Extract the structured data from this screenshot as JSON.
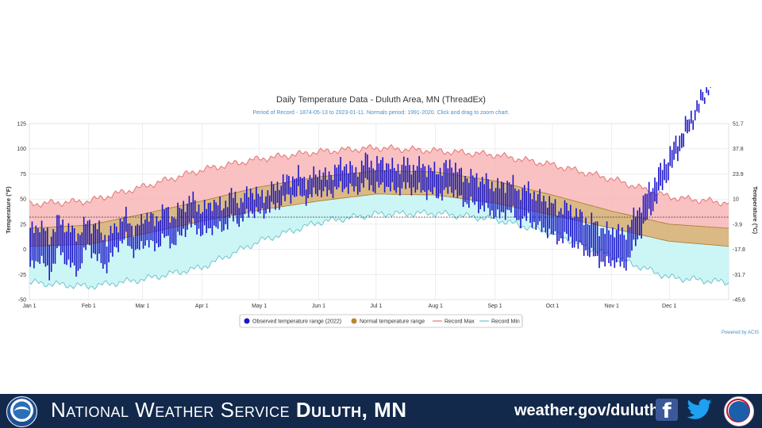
{
  "footer": {
    "org_prefix": "National Weather Service",
    "org_office": "Duluth, MN",
    "website": "weather.gov/duluth",
    "noaa_logo_icon": "noaa-logo-icon",
    "nws_logo_icon": "nws-logo-icon",
    "background_color": "#13294b"
  },
  "chart_data": {
    "type": "area",
    "title": "Daily Temperature Data - Duluth Area, MN (ThreadEx)",
    "subtitle": "Period of Record - 1874-05-13 to 2023-01-11. Normals period: 1991-2020. Click and drag to zoom chart.",
    "ylabel": "Temperature (°F)",
    "y2label": "Temperature (°C)",
    "ylim": [
      -50,
      125
    ],
    "yticks": [
      125,
      100,
      75,
      50,
      25,
      0,
      -25,
      -50
    ],
    "y2ticks": [
      "51.7",
      "37.8",
      "23.9",
      "10",
      "-3.9",
      "-17.8",
      "-31.7",
      "-45.6"
    ],
    "months": [
      "Jan 1",
      "Feb 1",
      "Mar 1",
      "Apr 1",
      "May 1",
      "Jun 1",
      "Jul 1",
      "Aug 1",
      "Sep 1",
      "Oct 1",
      "Nov 1",
      "Dec 1"
    ],
    "grid": true,
    "freezing_line_f": 32,
    "legend_position": "bottom",
    "legend": [
      "Observed temperature range (2022)",
      "Normal temperature range",
      "Record Max",
      "Record Min"
    ],
    "credit": "Powered by ACIS",
    "colors": {
      "observed": "#1c16c9",
      "normal_band": "#d8b57e",
      "normal_marker": "#b8862d",
      "record_max_fill": "#f8b6b6",
      "record_max_line": "#e57575",
      "record_min_fill": "#c7f4f4",
      "record_min_line": "#6fc5cf"
    },
    "seasonal_curves_by_month": {
      "record_max": [
        45,
        48,
        62,
        79,
        90,
        97,
        101,
        98,
        94,
        84,
        70,
        52,
        46
      ],
      "record_min": [
        -33,
        -37,
        -30,
        -18,
        8,
        27,
        35,
        36,
        30,
        16,
        -7,
        -28,
        -33
      ],
      "normal_high": [
        21,
        24,
        35,
        48,
        62,
        72,
        78,
        77,
        68,
        54,
        38,
        25,
        21
      ],
      "normal_low": [
        3,
        5,
        15,
        28,
        39,
        48,
        55,
        54,
        46,
        34,
        21,
        8,
        3
      ]
    },
    "observed_2022_sample": {
      "step_days": 5,
      "start": "Jan 1",
      "high": [
        18,
        25,
        12,
        30,
        20,
        15,
        28,
        22,
        10,
        24,
        33,
        18,
        35,
        28,
        40,
        32,
        45,
        50,
        38,
        48,
        42,
        55,
        47,
        60,
        52,
        58,
        66,
        70,
        74,
        68,
        78,
        72,
        82,
        85,
        76,
        90,
        84,
        88,
        80,
        86,
        82,
        84,
        78,
        80,
        86,
        74,
        72,
        70,
        66,
        62,
        68,
        58,
        60,
        52,
        50,
        40,
        42,
        36,
        30,
        26,
        18,
        20,
        15,
        32
      ],
      "low": [
        -20,
        -8,
        -25,
        0,
        -15,
        -22,
        5,
        -10,
        -18,
        3,
        10,
        -5,
        8,
        2,
        12,
        5,
        18,
        25,
        15,
        22,
        20,
        30,
        28,
        38,
        35,
        40,
        45,
        52,
        55,
        50,
        58,
        55,
        60,
        62,
        58,
        66,
        60,
        64,
        58,
        62,
        60,
        58,
        55,
        54,
        60,
        48,
        46,
        42,
        38,
        32,
        40,
        28,
        30,
        22,
        18,
        10,
        12,
        4,
        -2,
        -8,
        -15,
        -12,
        -18,
        2
      ]
    }
  }
}
